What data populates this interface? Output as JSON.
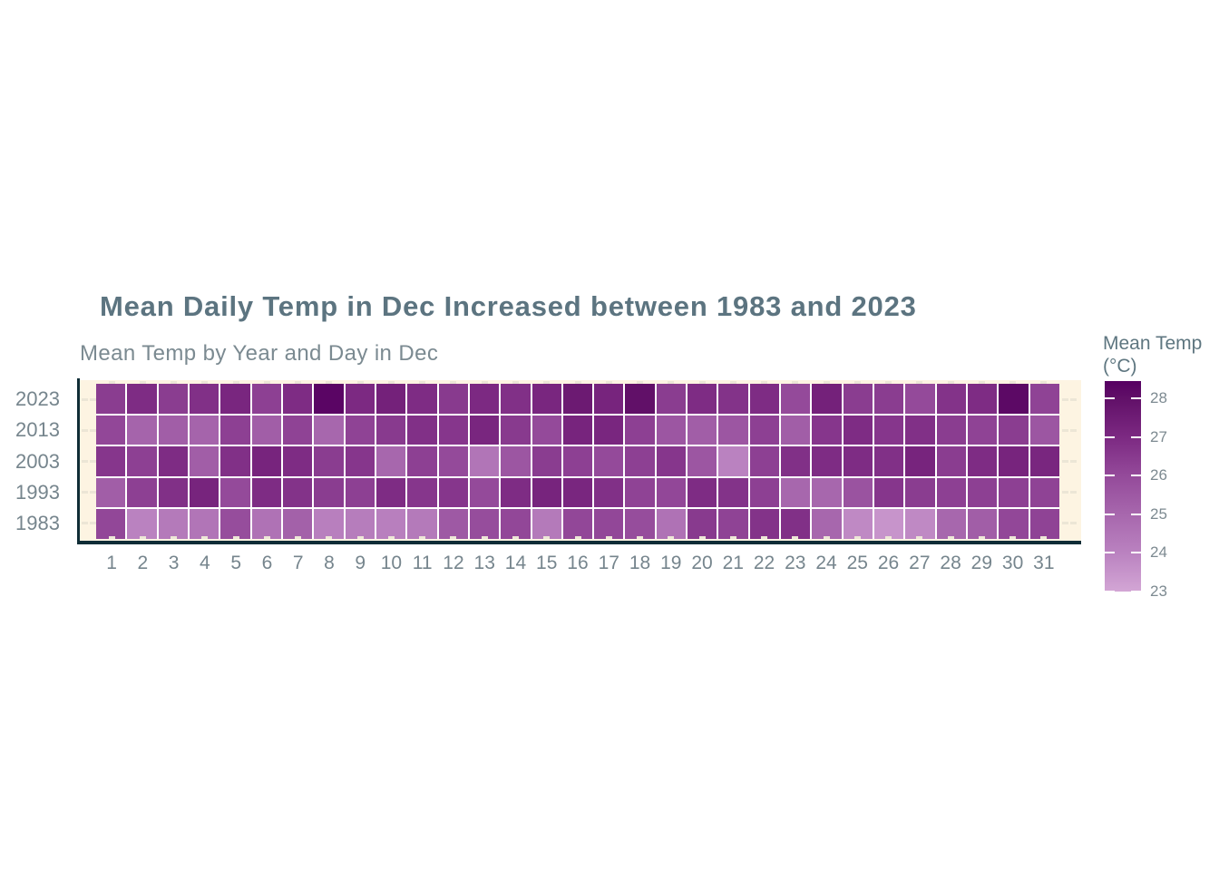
{
  "title": "Mean Daily Temp in Dec Increased between 1983 and 2023",
  "subtitle": "Mean Temp by Year and Day in Dec",
  "legend": {
    "title_line1": "Mean Temp",
    "title_line2": "(°C)",
    "tick_labels": [
      "28",
      "27",
      "26",
      "25",
      "24",
      "23"
    ]
  },
  "chart_data": {
    "type": "heatmap",
    "title": "Mean Daily Temp in Dec Increased between 1983 and 2023",
    "subtitle": "Mean Temp by Year and Day in Dec",
    "xlabel": "",
    "ylabel": "",
    "legend_title": "Mean Temp (°C)",
    "x_categories_days": [
      1,
      2,
      3,
      4,
      5,
      6,
      7,
      8,
      9,
      10,
      11,
      12,
      13,
      14,
      15,
      16,
      17,
      18,
      19,
      20,
      21,
      22,
      23,
      24,
      25,
      26,
      27,
      28,
      29,
      30,
      31
    ],
    "y_categories_years": [
      "2023",
      "2013",
      "2003",
      "1993",
      "1983"
    ],
    "value_domain": [
      23,
      28.45
    ],
    "legend_tick_values": [
      28,
      27,
      26,
      25,
      24,
      23
    ],
    "grid": "off",
    "legend_position": "right",
    "series": [
      {
        "name": "2023",
        "values": [
          26.4,
          26.9,
          26.4,
          26.8,
          27.1,
          26.3,
          26.9,
          28.3,
          27.0,
          27.3,
          26.9,
          26.5,
          27.0,
          26.8,
          27.1,
          27.6,
          27.2,
          28.0,
          26.4,
          26.9,
          26.7,
          26.9,
          26.0,
          27.3,
          26.4,
          26.4,
          26.0,
          26.7,
          26.9,
          28.2,
          26.2
        ]
      },
      {
        "name": "2013",
        "values": [
          26.1,
          25.1,
          25.3,
          25.1,
          26.3,
          25.3,
          26.2,
          25.0,
          26.2,
          26.5,
          26.8,
          26.6,
          27.1,
          26.5,
          26.0,
          27.2,
          27.1,
          26.3,
          25.6,
          25.3,
          25.6,
          26.3,
          25.3,
          26.6,
          26.9,
          26.6,
          26.8,
          26.4,
          26.2,
          26.4,
          25.6
        ]
      },
      {
        "name": "2003",
        "values": [
          26.6,
          26.3,
          26.9,
          25.3,
          26.8,
          27.2,
          26.9,
          26.4,
          26.6,
          25.0,
          26.3,
          26.0,
          24.5,
          25.6,
          26.4,
          26.3,
          26.0,
          26.3,
          26.6,
          25.6,
          24.0,
          26.3,
          26.8,
          26.9,
          26.9,
          26.8,
          27.2,
          26.4,
          26.9,
          27.2,
          27.1
        ]
      },
      {
        "name": "1993",
        "values": [
          25.3,
          26.3,
          26.8,
          27.2,
          26.0,
          26.9,
          26.7,
          26.4,
          26.3,
          26.9,
          26.6,
          26.6,
          26.0,
          26.9,
          27.2,
          27.1,
          26.8,
          26.2,
          26.1,
          26.9,
          26.7,
          26.3,
          25.0,
          25.0,
          25.7,
          26.6,
          26.4,
          26.3,
          26.3,
          26.3,
          26.2
        ]
      },
      {
        "name": "1983",
        "values": [
          26.1,
          24.0,
          24.3,
          24.5,
          25.9,
          24.6,
          25.2,
          24.1,
          24.2,
          24.1,
          24.3,
          25.5,
          25.9,
          26.1,
          24.3,
          26.1,
          26.1,
          25.9,
          24.6,
          26.5,
          26.2,
          26.7,
          26.8,
          25.0,
          23.8,
          23.5,
          23.8,
          25.0,
          25.3,
          26.1,
          26.2
        ]
      }
    ],
    "color_scale": {
      "stops": [
        {
          "value": 23,
          "color": "#d3a6d5"
        },
        {
          "value": 24,
          "color": "#ba82c0"
        },
        {
          "value": 25,
          "color": "#a767ad"
        },
        {
          "value": 26,
          "color": "#944a9a"
        },
        {
          "value": 27,
          "color": "#7c2982"
        },
        {
          "value": 28,
          "color": "#611068"
        },
        {
          "value": 28.45,
          "color": "#560062"
        }
      ]
    }
  },
  "colors": {
    "background": "#ffffff",
    "panel_background": "#fdf4e2",
    "axis_line": "#0f2d36",
    "cell_gap": "#ffffff",
    "panel_tick": "#ece6d6",
    "title_text": "#5c7480",
    "subtitle_text": "#7b8a91",
    "axis_label_text": "#76858d",
    "legend_title_text": "#5e7680",
    "legend_label_text": "#7d8a91"
  }
}
